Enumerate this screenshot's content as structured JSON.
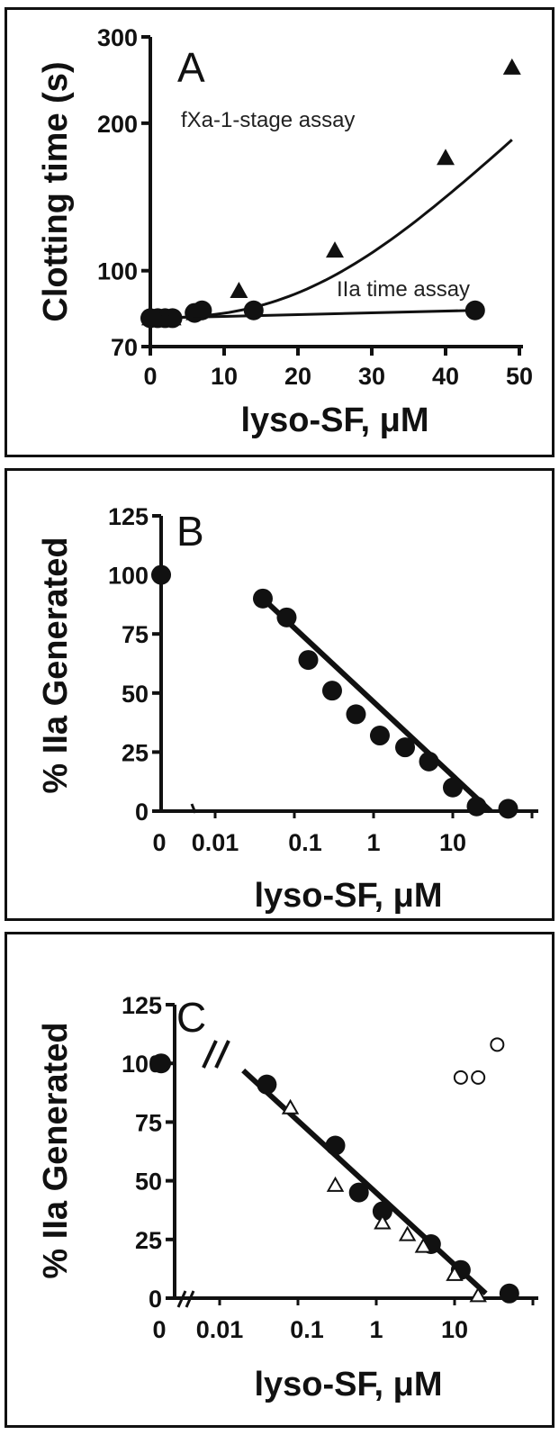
{
  "chart_data": [
    {
      "panel": "A",
      "type": "line",
      "ylabel": "Clotting time (s)",
      "xlabel": "lyso-SF, μM",
      "xlim": [
        0,
        50
      ],
      "ylim": [
        70,
        300
      ],
      "y_scale": "log",
      "x_ticks": [
        0,
        10,
        20,
        30,
        40,
        50
      ],
      "y_ticks": [
        70,
        100,
        200,
        300
      ],
      "grid": false,
      "annotations": [
        "fXa-1-stage assay",
        "IIa time assay"
      ],
      "series": [
        {
          "name": "fXa-1-stage assay",
          "marker": "triangle",
          "x": [
            0,
            1,
            2,
            3,
            6,
            7,
            12,
            25,
            40,
            49
          ],
          "y": [
            80,
            80,
            80,
            80,
            82,
            83,
            91,
            110,
            170,
            260
          ]
        },
        {
          "name": "IIa time assay",
          "marker": "circle",
          "x": [
            0,
            1,
            2,
            3,
            6,
            7,
            14,
            44
          ],
          "y": [
            80,
            80,
            80,
            80,
            82,
            83,
            83,
            83
          ]
        }
      ]
    },
    {
      "panel": "B",
      "type": "scatter",
      "ylabel": "% IIa Generated",
      "xlabel": "lyso-SF, μM",
      "x_scale": "log",
      "ylim": [
        0,
        125
      ],
      "x_ticks": [
        "0",
        "0.01",
        "0.1",
        "1",
        "10"
      ],
      "y_ticks": [
        0,
        25,
        50,
        75,
        100,
        125
      ],
      "grid": false,
      "series": [
        {
          "marker": "circle",
          "x": [
            0,
            0.04,
            0.08,
            0.15,
            0.3,
            0.6,
            1.2,
            2.5,
            5,
            10,
            20,
            50
          ],
          "y": [
            100,
            90,
            82,
            64,
            51,
            41,
            32,
            27,
            21,
            10,
            2,
            1
          ]
        }
      ],
      "fit_line": {
        "x": [
          0.04,
          30
        ],
        "y": [
          90,
          0
        ]
      }
    },
    {
      "panel": "C",
      "type": "scatter",
      "ylabel": "% IIa Generated",
      "xlabel": "lyso-SF, μM",
      "x_scale": "log",
      "ylim": [
        0,
        125
      ],
      "x_ticks": [
        "0",
        "0.01",
        "0.1",
        "1",
        "10"
      ],
      "y_ticks": [
        0,
        25,
        50,
        75,
        100,
        125
      ],
      "grid": false,
      "series": [
        {
          "marker": "circle",
          "x": [
            0,
            0.04,
            0.3,
            0.6,
            1.2,
            5,
            12,
            50
          ],
          "y": [
            100,
            91,
            65,
            45,
            37,
            23,
            12,
            2
          ]
        },
        {
          "marker": "open-triangle",
          "x": [
            0.08,
            0.3,
            1.2,
            2.5,
            4,
            10,
            20
          ],
          "y": [
            81,
            48,
            32,
            27,
            22,
            10,
            1
          ]
        },
        {
          "marker": "open-circle",
          "x": [
            12,
            20,
            35
          ],
          "y": [
            94,
            94,
            108
          ]
        }
      ],
      "fit_line": {
        "x": [
          0.02,
          25
        ],
        "y": [
          97,
          2
        ]
      }
    }
  ]
}
